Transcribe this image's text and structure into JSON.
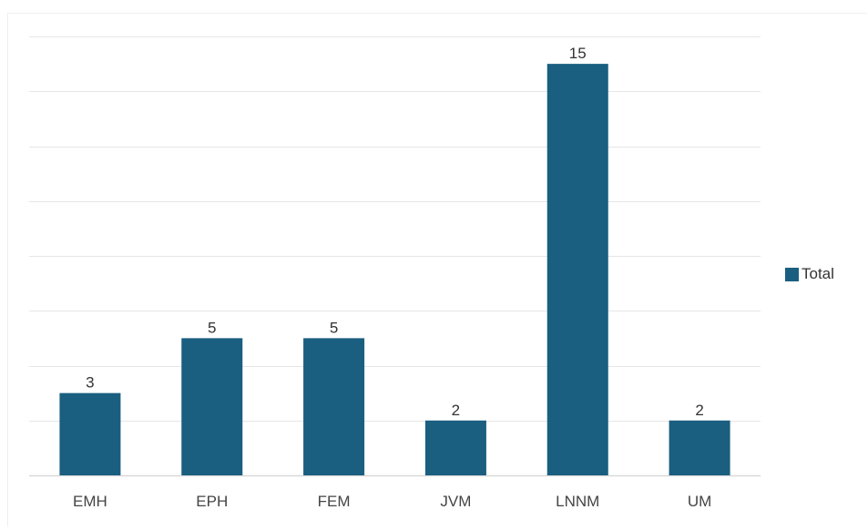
{
  "chart_data": {
    "type": "bar",
    "categories": [
      "EMH",
      "EPH",
      "FEM",
      "JVM",
      "LNNM",
      "UM"
    ],
    "series": [
      {
        "name": "Total",
        "values": [
          3,
          5,
          5,
          2,
          15,
          2
        ],
        "color": "#1a5e80"
      }
    ],
    "data_labels": [
      "3",
      "5",
      "5",
      "2",
      "15",
      "2"
    ],
    "title": "",
    "xlabel": "",
    "ylabel": "",
    "ylim": [
      0,
      16
    ],
    "y_gridline_step": 2,
    "grid": true,
    "y_tick_labels_shown": false,
    "legend_position": "right"
  },
  "legend": {
    "label": "Total",
    "color": "#1a5e80"
  }
}
